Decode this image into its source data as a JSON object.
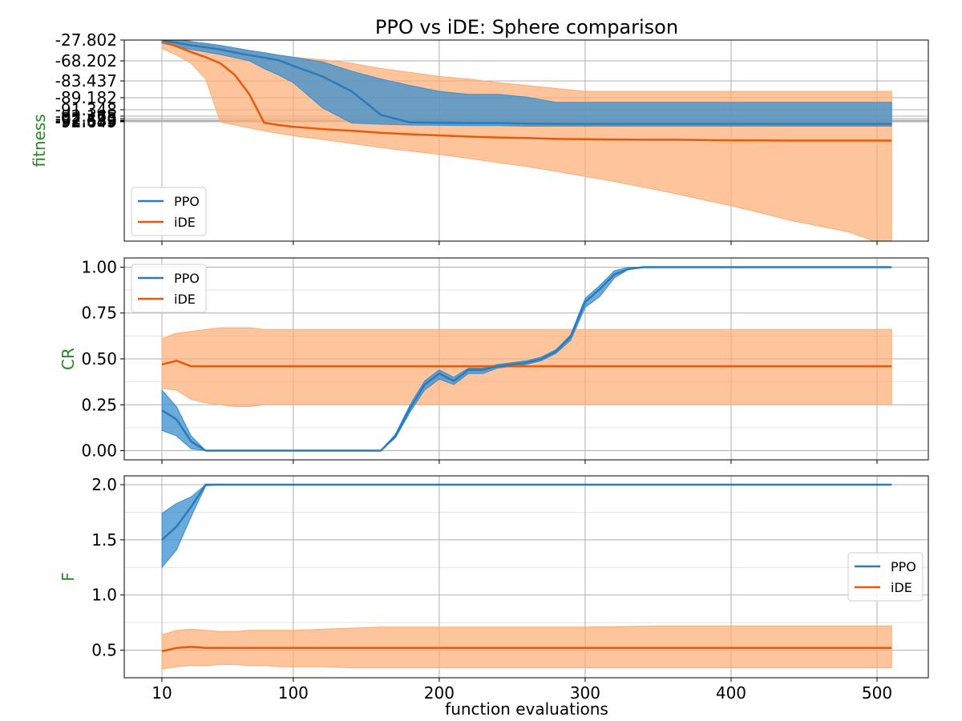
{
  "title": "PPO vs iDE: Sphere comparison",
  "xlabel": "function evaluations",
  "colors": {
    "ppo_line": "#2b7bba",
    "ppo_band": "#3a8fd0",
    "ide_line": "#e8590c",
    "ide_band": "#fdac72",
    "ylabel": "#228b22",
    "grid": "#b0b0b0",
    "grid_minor": "#e4e4e4"
  },
  "chart_data": [
    {
      "type": "line",
      "ylabel": "fitness",
      "legend_position": "lower-left",
      "grid": true,
      "xticks": [
        "10",
        "100",
        "200",
        "300",
        "400",
        "500"
      ],
      "yticks": [
        "-27.802",
        "-68.202",
        "-83.437",
        "-89.182",
        "-91.348",
        "-92.165",
        "-92.473",
        "-92.589",
        "-92.633",
        "-92.649"
      ],
      "x_ide": [
        10,
        20,
        30,
        40,
        50,
        60,
        70,
        80,
        90,
        100,
        120,
        140,
        160,
        180,
        200,
        220,
        240,
        260,
        280,
        300,
        320,
        340,
        360,
        380,
        400,
        420,
        440,
        460,
        480,
        500,
        510
      ],
      "x_ppo": [
        10,
        20,
        30,
        40,
        50,
        60,
        70,
        80,
        90,
        100,
        120,
        140,
        160,
        180,
        200,
        220,
        240,
        260,
        280,
        300,
        320,
        340,
        360,
        380,
        400,
        420,
        440,
        460,
        480,
        500,
        510
      ],
      "series": [
        {
          "name": "PPO",
          "mean": [
            -27.8,
            -33,
            -38,
            -42,
            -46,
            -52,
            -57,
            -62,
            -67,
            -72,
            -80,
            -87,
            -92,
            -95,
            -96,
            -97,
            -97,
            -99,
            -100,
            -100,
            -100,
            -100,
            -100,
            -100,
            -100,
            -100,
            -100,
            -100,
            -100,
            -100,
            -100
          ],
          "lower": [
            -34,
            -40,
            -46,
            -51,
            -56,
            -62,
            -68,
            -74,
            -79,
            -84,
            -91,
            -97,
            -101,
            -104,
            -105,
            -106,
            -106,
            -108,
            -108,
            -108,
            -108,
            -108,
            -108,
            -108,
            -108,
            -108,
            -108,
            -108,
            -108,
            -108,
            -108
          ],
          "upper": [
            -21,
            -26,
            -31,
            -34,
            -38,
            -43,
            -48,
            -52,
            -57,
            -61,
            -69,
            -76,
            -82,
            -85,
            -87,
            -88,
            -88,
            -89,
            -90,
            -90,
            -90,
            -90,
            -90,
            -90,
            -90,
            -90,
            -90,
            -90,
            -90,
            -90,
            -90
          ]
        },
        {
          "name": "iDE",
          "mean": [
            -29,
            -40,
            -51,
            -61,
            -70,
            -79,
            -88,
            -96,
            -104,
            -110,
            -118,
            -124,
            -131,
            -136,
            -140,
            -144,
            -147,
            -149,
            -152,
            -153,
            -154,
            -155,
            -155,
            -156,
            -157,
            -157,
            -158,
            -158,
            -158,
            -158,
            -158
          ],
          "lower": [
            -44,
            -57,
            -70,
            -82,
            -93,
            -104,
            -114,
            -124,
            -133,
            -141,
            -154,
            -168,
            -182,
            -194,
            -206,
            -220,
            -234,
            -248,
            -264,
            -282,
            -300,
            -320,
            -340,
            -362,
            -384,
            -408,
            -434,
            -454,
            -474,
            -510,
            -560
          ],
          "upper": [
            -18,
            -24,
            -30,
            -36,
            -41,
            -45,
            -49,
            -53,
            -57,
            -61,
            -66,
            -70,
            -74,
            -77,
            -80,
            -82,
            -84,
            -85,
            -86,
            -87,
            -87,
            -87,
            -87,
            -87,
            -87,
            -87,
            -87,
            -87,
            -87,
            -87,
            -87
          ]
        }
      ]
    },
    {
      "type": "line",
      "ylabel": "CR",
      "legend_position": "upper-left",
      "grid": true,
      "xticks": [
        "10",
        "100",
        "200",
        "300",
        "400",
        "500"
      ],
      "yticks": [
        "0.00",
        "0.25",
        "0.50",
        "0.75",
        "1.00"
      ],
      "ylim": [
        -0.05,
        1.05
      ],
      "x_ide": [
        10,
        20,
        30,
        40,
        50,
        60,
        70,
        80,
        90,
        100,
        120,
        140,
        160,
        180,
        200,
        250,
        300,
        350,
        400,
        450,
        500,
        510
      ],
      "x_ppo": [
        10,
        20,
        30,
        40,
        50,
        60,
        80,
        100,
        120,
        140,
        160,
        170,
        180,
        190,
        200,
        210,
        220,
        230,
        240,
        250,
        260,
        270,
        280,
        290,
        300,
        310,
        320,
        330,
        340,
        350,
        400,
        450,
        500,
        510
      ],
      "series": [
        {
          "name": "PPO",
          "mean": [
            0.22,
            0.17,
            0.05,
            0.0,
            0.0,
            0.0,
            0.0,
            0.0,
            0.0,
            0.0,
            0.0,
            0.08,
            0.23,
            0.36,
            0.42,
            0.38,
            0.44,
            0.44,
            0.46,
            0.47,
            0.48,
            0.5,
            0.54,
            0.62,
            0.81,
            0.88,
            0.96,
            0.99,
            1.0,
            1.0,
            1.0,
            1.0,
            1.0,
            1.0
          ],
          "lower": [
            0.11,
            0.08,
            0.01,
            0.0,
            0.0,
            0.0,
            0.0,
            0.0,
            0.0,
            0.0,
            0.0,
            0.07,
            0.21,
            0.33,
            0.39,
            0.36,
            0.42,
            0.42,
            0.45,
            0.46,
            0.47,
            0.49,
            0.53,
            0.6,
            0.78,
            0.84,
            0.94,
            0.99,
            1.0,
            1.0,
            1.0,
            1.0,
            1.0,
            1.0
          ],
          "upper": [
            0.33,
            0.24,
            0.08,
            0.0,
            0.0,
            0.0,
            0.0,
            0.0,
            0.0,
            0.0,
            0.0,
            0.09,
            0.25,
            0.38,
            0.44,
            0.4,
            0.45,
            0.45,
            0.47,
            0.48,
            0.49,
            0.51,
            0.55,
            0.63,
            0.83,
            0.9,
            0.98,
            1.0,
            1.0,
            1.0,
            1.0,
            1.0,
            1.0,
            1.0
          ]
        },
        {
          "name": "iDE",
          "mean": [
            0.47,
            0.49,
            0.46,
            0.46,
            0.46,
            0.46,
            0.46,
            0.46,
            0.46,
            0.46,
            0.46,
            0.46,
            0.46,
            0.46,
            0.46,
            0.46,
            0.46,
            0.46,
            0.46,
            0.46,
            0.46,
            0.46
          ],
          "lower": [
            0.34,
            0.33,
            0.28,
            0.26,
            0.25,
            0.24,
            0.24,
            0.25,
            0.25,
            0.25,
            0.25,
            0.25,
            0.25,
            0.25,
            0.25,
            0.25,
            0.25,
            0.25,
            0.25,
            0.25,
            0.25,
            0.25
          ],
          "upper": [
            0.61,
            0.64,
            0.65,
            0.66,
            0.67,
            0.67,
            0.67,
            0.66,
            0.66,
            0.66,
            0.66,
            0.66,
            0.66,
            0.66,
            0.66,
            0.66,
            0.66,
            0.66,
            0.66,
            0.66,
            0.66,
            0.66
          ]
        }
      ]
    },
    {
      "type": "line",
      "ylabel": "F",
      "legend_position": "center-right",
      "grid": true,
      "xticks": [
        "10",
        "100",
        "200",
        "300",
        "400",
        "500"
      ],
      "yticks": [
        "0.5",
        "1.0",
        "1.5",
        "2.0"
      ],
      "ylim": [
        0.25,
        2.08
      ],
      "x_ide": [
        10,
        20,
        30,
        40,
        50,
        60,
        70,
        80,
        90,
        100,
        120,
        140,
        160,
        180,
        200,
        250,
        300,
        350,
        400,
        450,
        500,
        510
      ],
      "x_ppo": [
        10,
        20,
        30,
        40,
        50,
        100,
        200,
        300,
        400,
        500,
        510
      ],
      "series": [
        {
          "name": "PPO",
          "mean": [
            1.5,
            1.62,
            1.8,
            2.0,
            2.0,
            2.0,
            2.0,
            2.0,
            2.0,
            2.0,
            2.0
          ],
          "lower": [
            1.25,
            1.41,
            1.71,
            1.99,
            2.0,
            2.0,
            2.0,
            2.0,
            2.0,
            2.0,
            2.0
          ],
          "upper": [
            1.74,
            1.83,
            1.89,
            2.0,
            2.0,
            2.0,
            2.0,
            2.0,
            2.0,
            2.0,
            2.0
          ]
        },
        {
          "name": "iDE",
          "mean": [
            0.49,
            0.52,
            0.53,
            0.52,
            0.52,
            0.52,
            0.52,
            0.52,
            0.52,
            0.52,
            0.52,
            0.52,
            0.52,
            0.52,
            0.52,
            0.52,
            0.52,
            0.52,
            0.52,
            0.52,
            0.52,
            0.52
          ],
          "lower": [
            0.33,
            0.35,
            0.36,
            0.36,
            0.37,
            0.37,
            0.36,
            0.36,
            0.35,
            0.35,
            0.35,
            0.34,
            0.34,
            0.34,
            0.34,
            0.34,
            0.34,
            0.34,
            0.34,
            0.34,
            0.34,
            0.34
          ],
          "upper": [
            0.64,
            0.68,
            0.69,
            0.68,
            0.67,
            0.67,
            0.68,
            0.68,
            0.68,
            0.68,
            0.69,
            0.7,
            0.71,
            0.71,
            0.71,
            0.71,
            0.71,
            0.72,
            0.72,
            0.72,
            0.72,
            0.72
          ]
        }
      ]
    }
  ]
}
